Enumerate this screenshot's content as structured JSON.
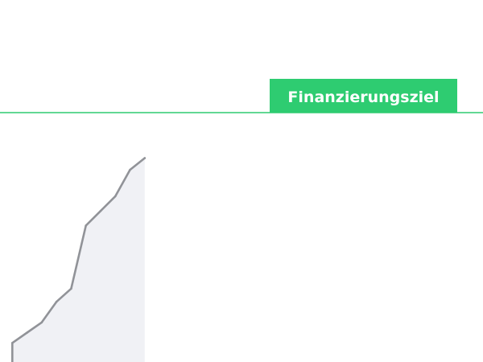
{
  "chart_data": {
    "type": "area",
    "title": "",
    "xlabel": "",
    "ylabel": "",
    "x": [
      1,
      2,
      3,
      4,
      5,
      6,
      7,
      8,
      9,
      10
    ],
    "series": [
      {
        "values": [
          13,
          20,
          27,
          41,
          50,
          93,
          103,
          113,
          131,
          139
        ]
      }
    ],
    "xlim": [
      0,
      32
    ],
    "ylim": [
      0,
      170
    ],
    "goal": {
      "label": "Finanzierungsziel",
      "value": 170
    },
    "grid": false,
    "legend": "none"
  },
  "colors": {
    "area_fill": "#f0f1f5",
    "line": "#919398",
    "goal": "#2ecc71",
    "goal_label_text": "#ffffff"
  }
}
